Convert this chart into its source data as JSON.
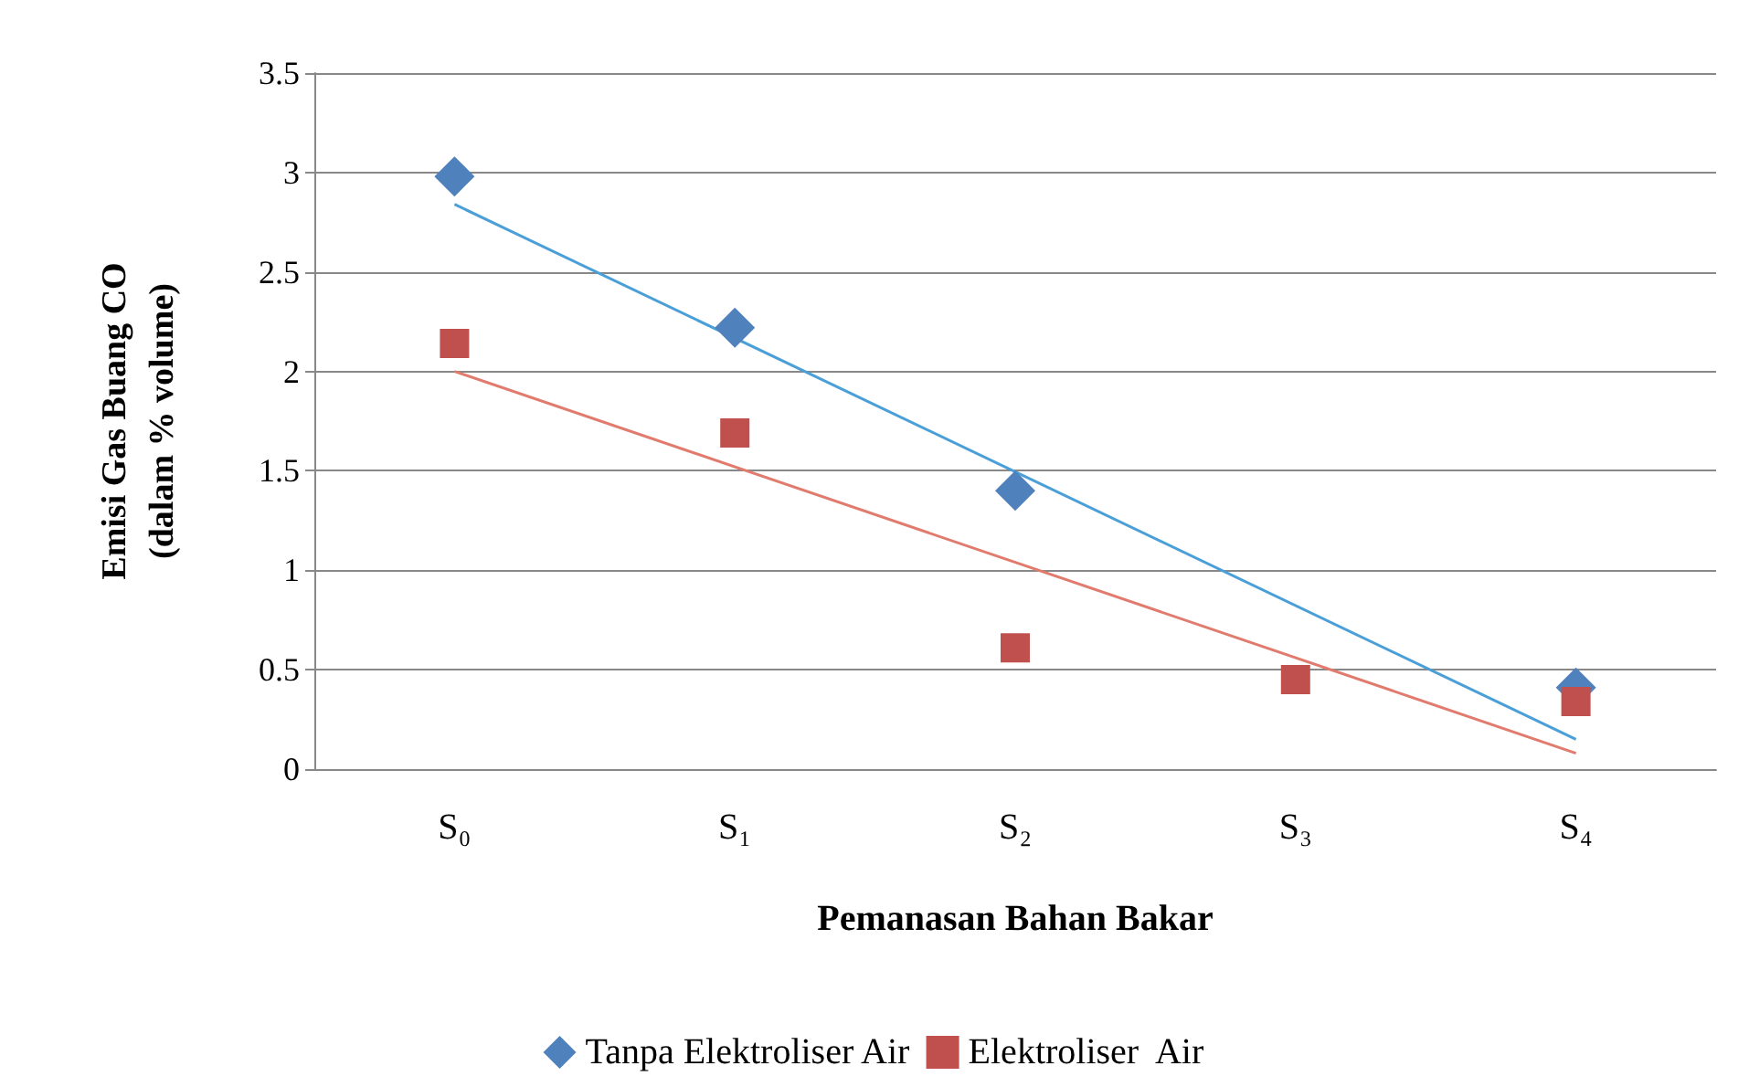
{
  "chart_data": {
    "type": "scatter",
    "xlabel": "Pemanasan Bahan Bakar",
    "ylabel": "Emisi Gas Buang CO\n(dalam % volume)",
    "categories": [
      "S₀",
      "S₁",
      "S₂",
      "S₃",
      "S₄"
    ],
    "series": [
      {
        "name": "Tanpa Elektroliser Air",
        "marker": "diamond",
        "color": "#4f81bd",
        "values": [
          2.98,
          2.22,
          1.4,
          null,
          0.41
        ]
      },
      {
        "name": "Elektroliser  Air",
        "marker": "square",
        "color": "#c0504d",
        "values": [
          2.14,
          1.69,
          0.61,
          0.45,
          0.34
        ]
      },
      {
        "type": "line",
        "marker": "none",
        "color": "#4a9fd8",
        "x": [
          "S₀",
          "S₄"
        ],
        "values": [
          2.84,
          0.15
        ]
      },
      {
        "type": "line",
        "marker": "none",
        "color": "#e07b6e",
        "x": [
          "S₀",
          "S₄"
        ],
        "values": [
          2.0,
          0.08
        ]
      }
    ],
    "ylim": [
      0,
      3.5
    ],
    "yticks": [
      0,
      0.5,
      1,
      1.5,
      2,
      2.5,
      3,
      3.5
    ],
    "grid": "y",
    "legend": "bottom"
  }
}
